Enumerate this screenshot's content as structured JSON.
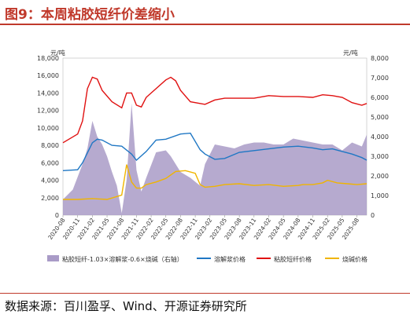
{
  "figure": {
    "title": "图9：本周粘胶短纤价差缩小",
    "source": "数据来源：百川盈孚、Wind、开源证券研究所"
  },
  "colors": {
    "spread": "#a99bc7",
    "pulp": "#1f77c4",
    "viscose": "#e01010",
    "soda": "#f0b400",
    "title": "#c0392b"
  },
  "chart_data": {
    "type": "line+area",
    "left_unit": "元/吨",
    "right_unit": "元/吨",
    "ylim_left": [
      0,
      18000
    ],
    "ylim_right": [
      0,
      8000
    ],
    "yticks_left": [
      "0",
      "2,000",
      "4,000",
      "6,000",
      "8,000",
      "10,000",
      "12,000",
      "14,000",
      "16,000",
      "18,000"
    ],
    "yticks_right": [
      "0",
      "1,000",
      "2,000",
      "3,000",
      "4,000",
      "5,000",
      "6,000",
      "7,000",
      "8,000"
    ],
    "x_start": "2020-08",
    "x_end": "2025-10",
    "xticks": [
      "2020-08",
      "2020-11",
      "2021-02",
      "2021-05",
      "2021-08",
      "2021-11",
      "2022-02",
      "2022-05",
      "2022-08",
      "2022-11",
      "2023-02",
      "2023-05",
      "2023-08",
      "2023-11",
      "2024-02",
      "2024-05",
      "2024-08",
      "2024-11",
      "2025-02",
      "2025-05",
      "2025-08"
    ],
    "series": [
      {
        "name": "粘胶短纤-1.03×溶解浆-0.6×烧碱（右轴）",
        "axis": "right",
        "kind": "area",
        "x": [
          "2020-08",
          "2020-10",
          "2020-12",
          "2021-01",
          "2021-02",
          "2021-03",
          "2021-04",
          "2021-05",
          "2021-06",
          "2021-07",
          "2021-08",
          "2021-09",
          "2021-10",
          "2021-11",
          "2021-12",
          "2022-01",
          "2022-03",
          "2022-05",
          "2022-06",
          "2022-08",
          "2022-10",
          "2022-12",
          "2023-01",
          "2023-03",
          "2023-05",
          "2023-07",
          "2023-09",
          "2023-11",
          "2024-01",
          "2024-03",
          "2024-05",
          "2024-07",
          "2024-09",
          "2024-11",
          "2025-01",
          "2025-03",
          "2025-05",
          "2025-07",
          "2025-09",
          "2025-10"
        ],
        "values": [
          800,
          1300,
          2600,
          3400,
          4800,
          4000,
          3600,
          3000,
          2200,
          1500,
          100,
          1800,
          5700,
          2300,
          1200,
          1900,
          3200,
          3300,
          3000,
          2200,
          1900,
          1500,
          2600,
          3600,
          3500,
          3400,
          3600,
          3700,
          3700,
          3600,
          3600,
          3900,
          3800,
          3700,
          3600,
          3600,
          3300,
          3700,
          3500,
          4100
        ]
      },
      {
        "name": "溶解浆价格",
        "axis": "left",
        "kind": "line",
        "x": [
          "2020-08",
          "2020-11",
          "2020-12",
          "2021-02",
          "2021-03",
          "2021-04",
          "2021-06",
          "2021-08",
          "2021-10",
          "2021-11",
          "2022-01",
          "2022-03",
          "2022-05",
          "2022-08",
          "2022-10",
          "2022-12",
          "2023-01",
          "2023-03",
          "2023-05",
          "2023-08",
          "2023-11",
          "2024-02",
          "2024-05",
          "2024-08",
          "2024-11",
          "2025-01",
          "2025-03",
          "2025-05",
          "2025-07",
          "2025-09",
          "2025-10"
        ],
        "values": [
          5100,
          5200,
          6000,
          8300,
          8700,
          8600,
          8000,
          7900,
          7000,
          6300,
          7300,
          8600,
          8700,
          9300,
          9400,
          7500,
          7000,
          6400,
          6500,
          7200,
          7400,
          7600,
          7800,
          7900,
          7700,
          7500,
          7600,
          7300,
          7000,
          6600,
          6300
        ]
      },
      {
        "name": "粘胶短纤价格",
        "axis": "left",
        "kind": "line",
        "x": [
          "2020-08",
          "2020-11",
          "2020-12",
          "2021-01",
          "2021-02",
          "2021-03",
          "2021-04",
          "2021-06",
          "2021-08",
          "2021-09",
          "2021-10",
          "2021-11",
          "2021-12",
          "2022-01",
          "2022-03",
          "2022-05",
          "2022-06",
          "2022-07",
          "2022-08",
          "2022-10",
          "2022-12",
          "2023-01",
          "2023-03",
          "2023-05",
          "2023-08",
          "2023-11",
          "2024-02",
          "2024-05",
          "2024-08",
          "2024-11",
          "2025-01",
          "2025-03",
          "2025-05",
          "2025-07",
          "2025-09",
          "2025-10"
        ],
        "values": [
          8300,
          9300,
          10800,
          14500,
          15800,
          15600,
          14300,
          13000,
          12300,
          14000,
          14000,
          12600,
          12400,
          13500,
          14500,
          15500,
          15800,
          15400,
          14300,
          13000,
          12800,
          12700,
          13200,
          13400,
          13400,
          13400,
          13700,
          13600,
          13600,
          13500,
          13800,
          13700,
          13500,
          12900,
          12600,
          12800
        ]
      },
      {
        "name": "烧碱价格",
        "axis": "left",
        "kind": "line",
        "x": [
          "2020-08",
          "2020-11",
          "2021-02",
          "2021-05",
          "2021-08",
          "2021-09",
          "2021-10",
          "2021-11",
          "2021-12",
          "2022-01",
          "2022-03",
          "2022-05",
          "2022-07",
          "2022-09",
          "2022-11",
          "2022-12",
          "2023-01",
          "2023-03",
          "2023-05",
          "2023-08",
          "2023-11",
          "2024-02",
          "2024-05",
          "2024-08",
          "2024-09",
          "2024-11",
          "2025-01",
          "2025-02",
          "2025-04",
          "2025-06",
          "2025-08",
          "2025-10"
        ],
        "values": [
          1800,
          1800,
          1900,
          1800,
          2300,
          5800,
          3800,
          3100,
          3100,
          3500,
          3800,
          4200,
          5000,
          5100,
          4800,
          3500,
          3200,
          3300,
          3500,
          3600,
          3400,
          3500,
          3300,
          3400,
          3500,
          3500,
          3700,
          4000,
          3700,
          3600,
          3500,
          3600
        ]
      }
    ]
  }
}
